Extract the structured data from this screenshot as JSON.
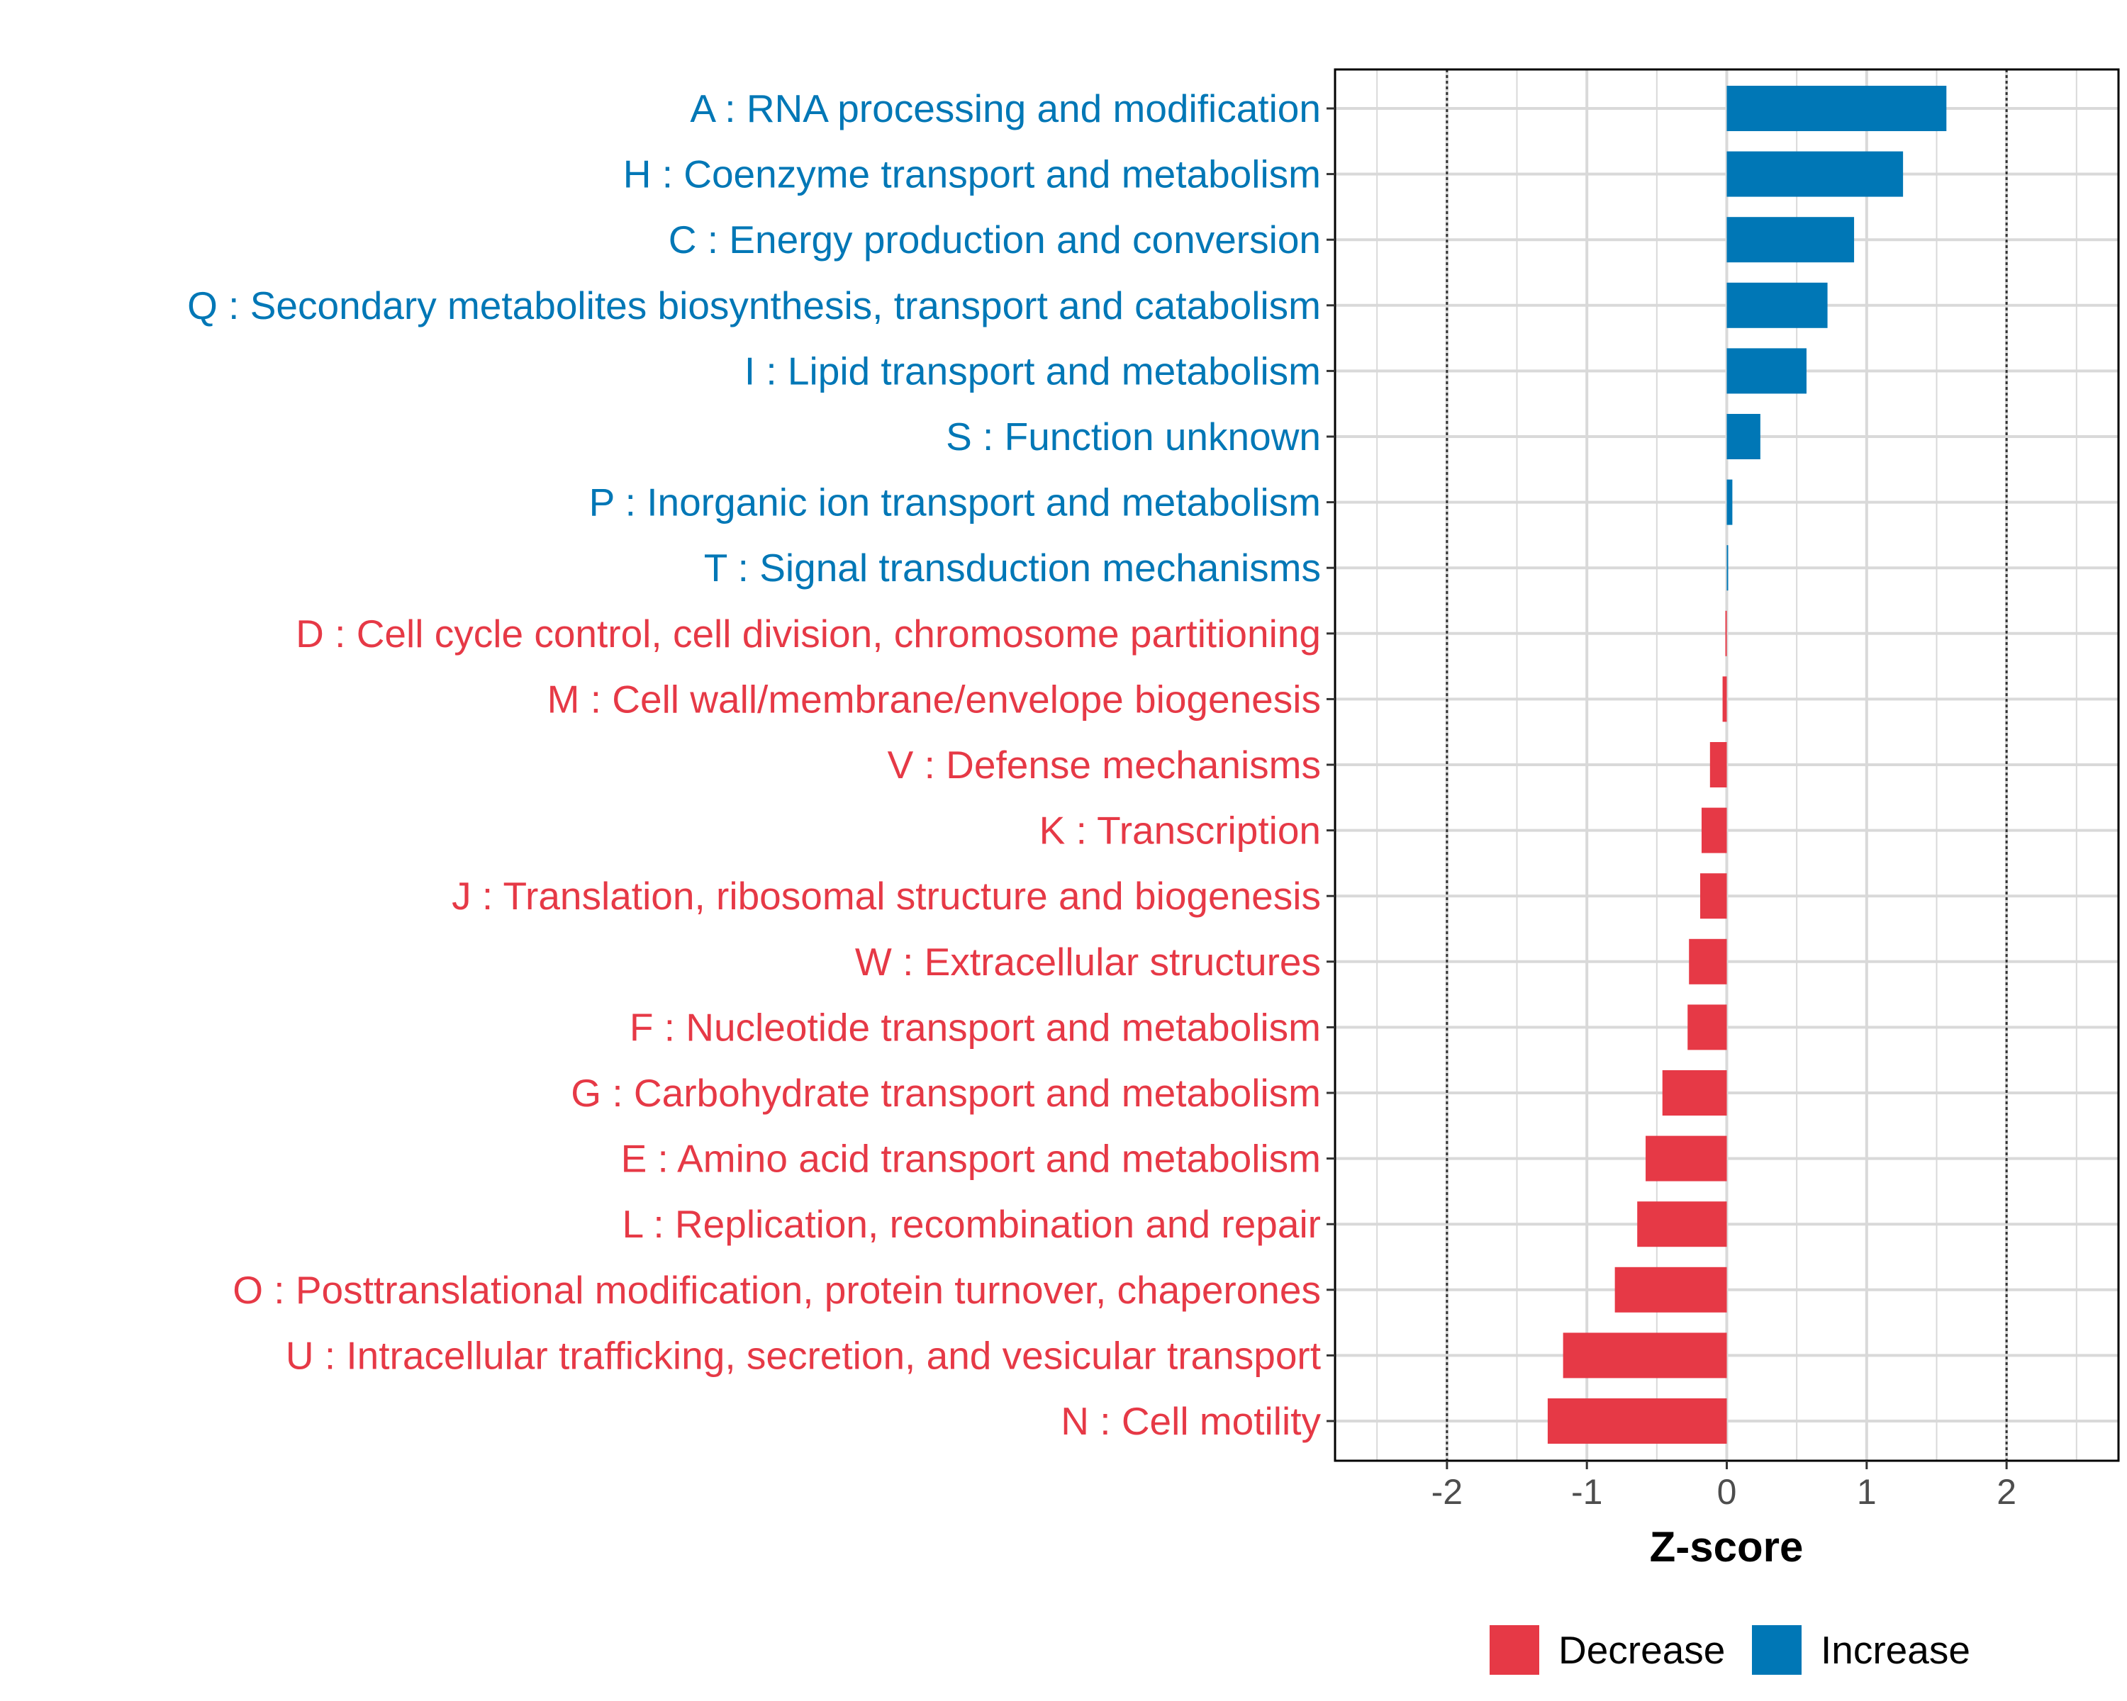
{
  "chart_data": {
    "type": "bar",
    "orientation": "horizontal",
    "title": "",
    "xlabel": "Z-score",
    "ylabel": "",
    "xlim": [
      -2.8,
      2.8
    ],
    "x_ticks": [
      -2,
      -1,
      0,
      1,
      2
    ],
    "x_tick_labels": [
      "-2",
      "-1",
      "0",
      "1",
      "2"
    ],
    "reference_lines": [
      -2,
      2
    ],
    "grid": true,
    "legend": {
      "position": "bottom",
      "items": [
        {
          "label": "Decrease",
          "color": "#E63946"
        },
        {
          "label": "Increase",
          "color": "#0077B6"
        }
      ]
    },
    "categories": [
      "A : RNA processing and modification",
      "H : Coenzyme transport and metabolism",
      "C : Energy production and conversion",
      "Q : Secondary metabolites biosynthesis, transport and catabolism",
      "I : Lipid transport and metabolism",
      "S : Function unknown",
      "P : Inorganic ion transport and metabolism",
      "T : Signal transduction mechanisms",
      "D : Cell cycle control, cell division, chromosome partitioning",
      "M : Cell wall/membrane/envelope biogenesis",
      "V : Defense mechanisms",
      "K : Transcription",
      "J : Translation, ribosomal structure and biogenesis",
      "W : Extracellular structures",
      "F : Nucleotide transport and metabolism",
      "G : Carbohydrate transport and metabolism",
      "E : Amino acid transport and metabolism",
      "L : Replication, recombination and repair",
      "O : Posttranslational modification, protein turnover, chaperones",
      "U : Intracellular trafficking, secretion, and vesicular transport",
      "N : Cell motility"
    ],
    "values": [
      1.57,
      1.26,
      0.91,
      0.72,
      0.57,
      0.24,
      0.04,
      0.01,
      -0.01,
      -0.03,
      -0.12,
      -0.18,
      -0.19,
      -0.27,
      -0.28,
      -0.46,
      -0.58,
      -0.64,
      -0.8,
      -1.17,
      -1.28
    ],
    "groups": [
      "Increase",
      "Increase",
      "Increase",
      "Increase",
      "Increase",
      "Increase",
      "Increase",
      "Increase",
      "Decrease",
      "Decrease",
      "Decrease",
      "Decrease",
      "Decrease",
      "Decrease",
      "Decrease",
      "Decrease",
      "Decrease",
      "Decrease",
      "Decrease",
      "Decrease",
      "Decrease"
    ]
  }
}
